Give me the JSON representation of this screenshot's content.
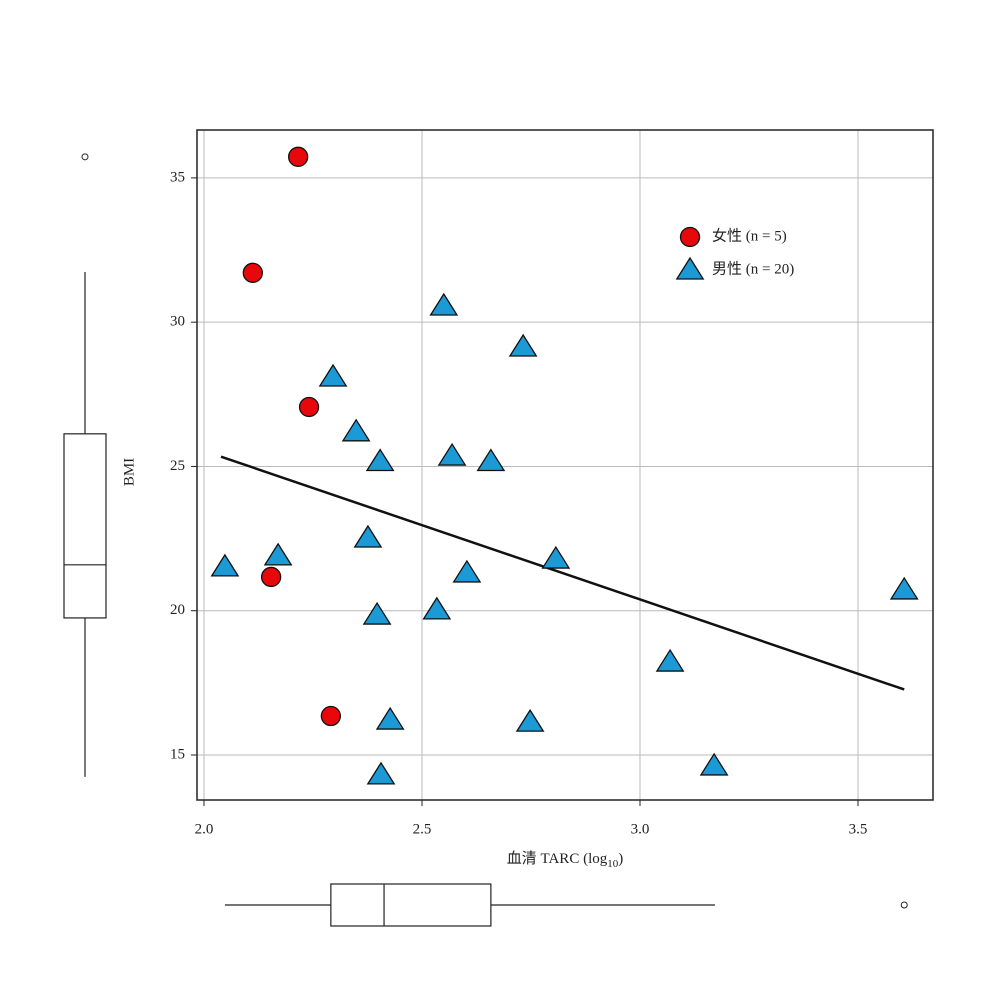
{
  "chart_data": {
    "type": "scatter",
    "xlabel": [
      "血清 TARC (log",
      "10",
      ")"
    ],
    "ylabel": "BMI",
    "xlim": [
      1.984,
      3.672
    ],
    "ylim": [
      13.44,
      36.66
    ],
    "xticks": [
      {
        "value": 2,
        "label": "2.0"
      },
      2.5,
      {
        "value": 3,
        "label": "3.0"
      },
      3.5
    ],
    "yticks": [
      15,
      20,
      25,
      30,
      35
    ],
    "grid": true,
    "legend": "upper right",
    "series": [
      {
        "name": "女性 (n = 5)",
        "marker": "circle",
        "color": "#e8080c",
        "x": [
          2.216,
          2.112,
          2.241,
          2.154,
          2.291
        ],
        "values": [
          35.73,
          31.71,
          27.06,
          21.17,
          16.35
        ]
      },
      {
        "name": "男性 (n = 20)",
        "marker": "triangle",
        "color": "#1c9ad6",
        "x": [
          2.048,
          2.17,
          2.296,
          2.349,
          2.404,
          2.376,
          2.397,
          2.406,
          2.427,
          2.534,
          2.55,
          2.569,
          2.603,
          2.658,
          2.732,
          2.748,
          2.807,
          3.069,
          3.17,
          3.606
        ],
        "values": [
          21.52,
          21.9,
          28.1,
          26.2,
          25.17,
          22.52,
          19.85,
          14.31,
          16.21,
          20.03,
          30.56,
          25.36,
          21.31,
          25.17,
          29.14,
          16.14,
          21.79,
          18.22,
          14.62,
          20.72
        ]
      }
    ],
    "fit": {
      "x": [
        2.039,
        3.606
      ],
      "y": [
        25.34,
        17.27
      ]
    },
    "x_box": {
      "whisker_low": 2.048,
      "q1": 2.291,
      "median": 2.413,
      "q3": 2.658,
      "whisker_high": 3.172,
      "outliers": [
        3.606
      ]
    },
    "y_box": {
      "whisker_low": 14.24,
      "q1": 19.75,
      "median": 21.59,
      "q3": 26.13,
      "whisker_high": 31.74,
      "outliers": [
        35.73
      ]
    }
  }
}
